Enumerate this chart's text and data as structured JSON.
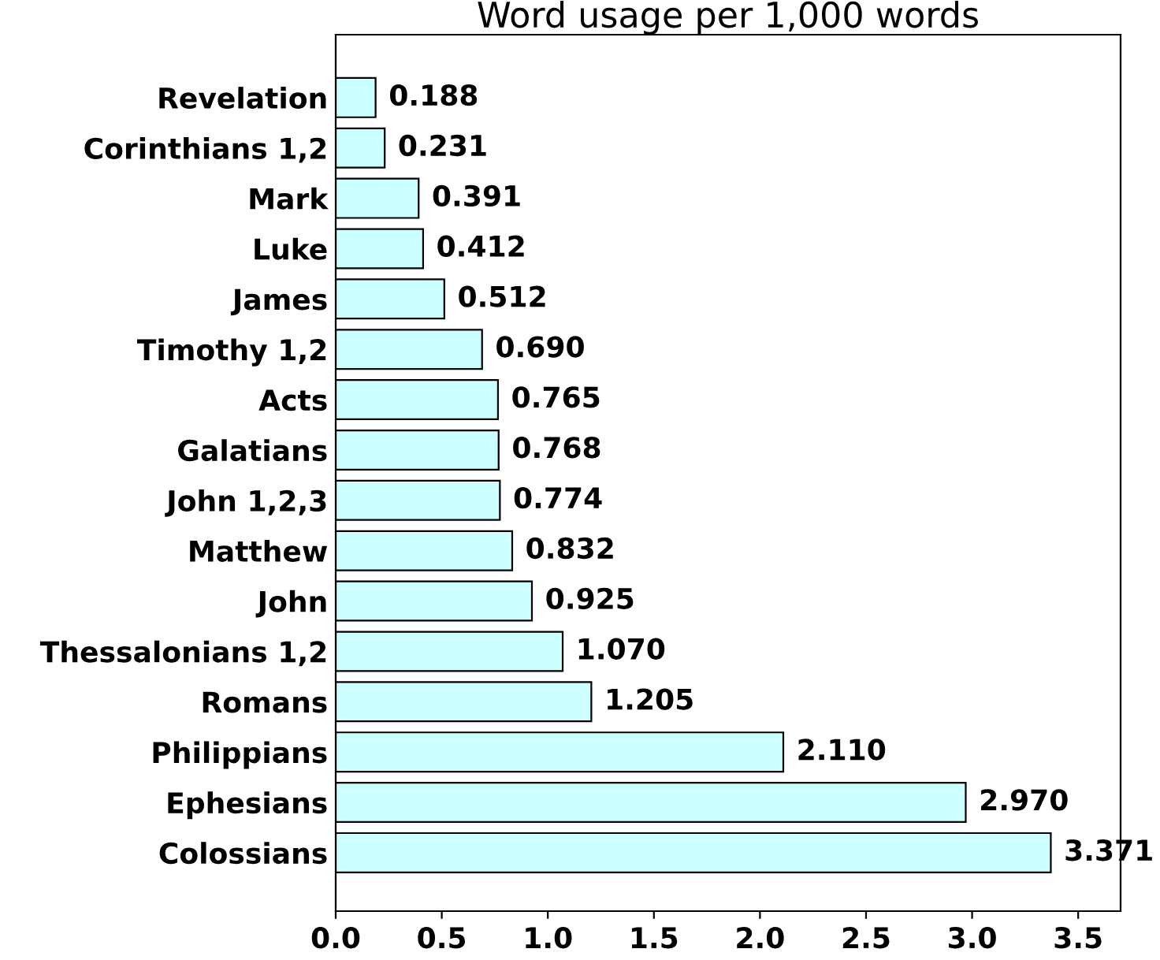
{
  "chart_data": {
    "type": "bar",
    "orientation": "horizontal",
    "title": "Word usage per 1,000 words",
    "categories": [
      "Revelation",
      "Corinthians 1,2",
      "Mark",
      "Luke",
      "James",
      "Timothy 1,2",
      "Acts",
      "Galatians",
      "John 1,2,3",
      "Matthew",
      "John",
      "Thessalonians 1,2",
      "Romans",
      "Philippians",
      "Ephesians",
      "Colossians"
    ],
    "values": [
      0.188,
      0.231,
      0.391,
      0.412,
      0.512,
      0.69,
      0.765,
      0.768,
      0.774,
      0.832,
      0.925,
      1.07,
      1.205,
      2.11,
      2.97,
      3.371
    ],
    "value_labels": [
      "0.188",
      "0.231",
      "0.391",
      "0.412",
      "0.512",
      "0.690",
      "0.765",
      "0.768",
      "0.774",
      "0.832",
      "0.925",
      "1.070",
      "1.205",
      "2.110",
      "2.970",
      "3.371"
    ],
    "color": "#ccffff",
    "xlim": [
      0,
      3.7
    ],
    "xticks": [
      {
        "value": 0,
        "label": "0.0"
      },
      {
        "value": 0.5,
        "label": "0.5"
      },
      {
        "value": 1,
        "label": "1.0"
      },
      {
        "value": 1.5,
        "label": "1.5"
      },
      {
        "value": 2,
        "label": "2.0"
      },
      {
        "value": 2.5,
        "label": "2.5"
      },
      {
        "value": 3,
        "label": "3.0"
      },
      {
        "value": 3.5,
        "label": "3.5"
      }
    ],
    "grid": false,
    "legend": false
  }
}
